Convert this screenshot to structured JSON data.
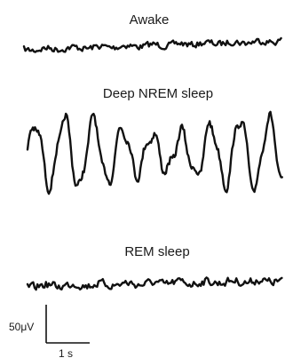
{
  "chart_data": {
    "type": "line",
    "panels": [
      {
        "key": "awake",
        "label": "Awake",
        "amplitude": "low",
        "waves": "fast, irregular"
      },
      {
        "key": "nrem",
        "label": "Deep NREM sleep",
        "amplitude": "high",
        "waves": "slow, large"
      },
      {
        "key": "rem",
        "label": "REM sleep",
        "amplitude": "low",
        "waves": "fast, irregular"
      }
    ],
    "scale_bar": {
      "voltage_label": "50μV",
      "time_label": "1 s"
    },
    "colors": {
      "trace": "#111111",
      "text": "#1a1a1a",
      "background": "#ffffff"
    }
  }
}
